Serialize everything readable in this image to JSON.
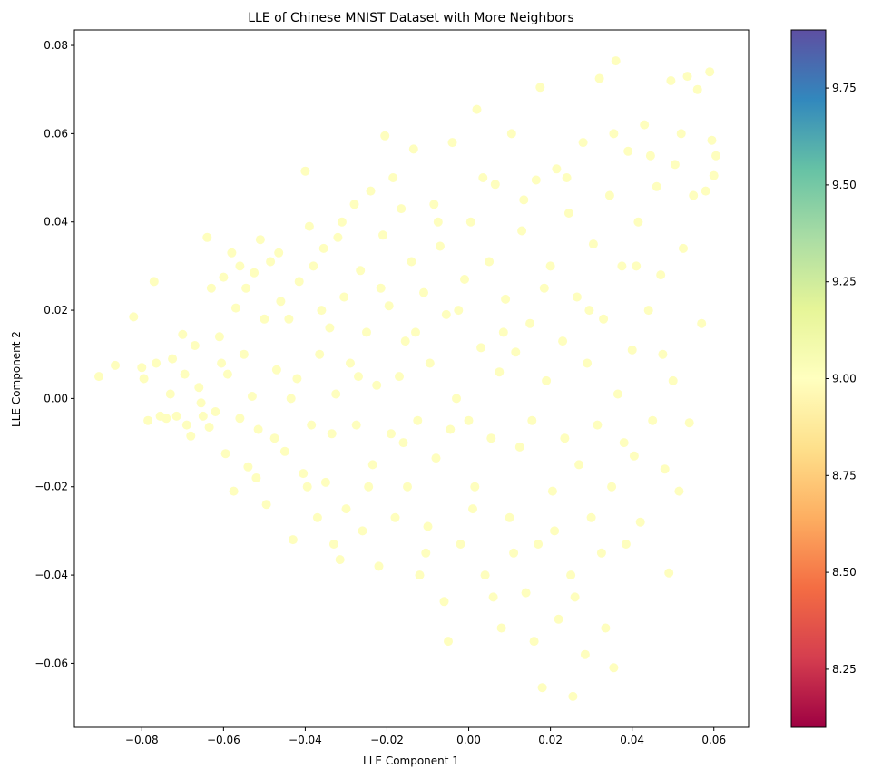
{
  "chart_data": {
    "type": "scatter",
    "title": "LLE of Chinese MNIST Dataset with More Neighbors",
    "xlabel": "LLE Component 1",
    "ylabel": "LLE Component 2",
    "xlim": [
      -0.0965,
      0.0685
    ],
    "ylim": [
      -0.0745,
      0.0835
    ],
    "xticks": [
      -0.08,
      -0.06,
      -0.04,
      -0.02,
      0.0,
      0.02,
      0.04,
      0.06
    ],
    "xtick_labels": [
      "−0.08",
      "−0.06",
      "−0.04",
      "−0.02",
      "0.00",
      "0.02",
      "0.04",
      "0.06"
    ],
    "yticks": [
      -0.06,
      -0.04,
      -0.02,
      0.0,
      0.02,
      0.04,
      0.06,
      0.08
    ],
    "ytick_labels": [
      "−0.06",
      "−0.04",
      "−0.02",
      "0.00",
      "0.02",
      "0.04",
      "0.06",
      "0.08"
    ],
    "point_color": "#fefebe",
    "grid": false,
    "colorbar": {
      "colormap": "Spectral",
      "range": [
        8.1,
        9.9
      ],
      "ticks": [
        8.25,
        8.5,
        8.75,
        9.0,
        9.25,
        9.5,
        9.75
      ],
      "tick_labels": [
        "8.25",
        "8.50",
        "8.75",
        "9.00",
        "9.25",
        "9.50",
        "9.75"
      ],
      "stops": [
        "#9e0142",
        "#d53e4f",
        "#f46d43",
        "#fdae61",
        "#fee08b",
        "#ffffbf",
        "#e6f598",
        "#abdda4",
        "#66c2a5",
        "#3288bd",
        "#5e4fa2"
      ]
    },
    "points": [
      [
        -0.0905,
        0.005
      ],
      [
        -0.0865,
        0.0075
      ],
      [
        -0.082,
        0.0185
      ],
      [
        -0.08,
        0.007
      ],
      [
        -0.0795,
        0.0045
      ],
      [
        -0.0785,
        -0.005
      ],
      [
        -0.077,
        0.0265
      ],
      [
        -0.0765,
        0.008
      ],
      [
        -0.0755,
        -0.004
      ],
      [
        -0.074,
        -0.0045
      ],
      [
        -0.073,
        0.001
      ],
      [
        -0.0715,
        -0.004
      ],
      [
        -0.07,
        0.0145
      ],
      [
        -0.0695,
        0.0055
      ],
      [
        -0.069,
        -0.006
      ],
      [
        -0.068,
        -0.0085
      ],
      [
        -0.067,
        0.012
      ],
      [
        -0.066,
        0.0025
      ],
      [
        -0.0655,
        -0.001
      ],
      [
        -0.064,
        0.0365
      ],
      [
        -0.0635,
        -0.0065
      ],
      [
        -0.063,
        0.025
      ],
      [
        -0.062,
        -0.003
      ],
      [
        -0.061,
        0.014
      ],
      [
        -0.06,
        0.0275
      ],
      [
        -0.0595,
        -0.0125
      ],
      [
        -0.059,
        0.0055
      ],
      [
        -0.058,
        0.033
      ],
      [
        -0.0575,
        -0.021
      ],
      [
        -0.057,
        0.0205
      ],
      [
        -0.056,
        -0.0045
      ],
      [
        -0.055,
        0.01
      ],
      [
        -0.0545,
        0.025
      ],
      [
        -0.054,
        -0.0155
      ],
      [
        -0.053,
        0.0005
      ],
      [
        -0.0525,
        0.0285
      ],
      [
        -0.0515,
        -0.007
      ],
      [
        -0.051,
        0.036
      ],
      [
        -0.05,
        0.018
      ],
      [
        -0.0495,
        -0.024
      ],
      [
        -0.0485,
        0.031
      ],
      [
        -0.0475,
        -0.009
      ],
      [
        -0.047,
        0.0065
      ],
      [
        -0.046,
        0.022
      ],
      [
        -0.045,
        -0.012
      ],
      [
        -0.044,
        0.018
      ],
      [
        -0.043,
        -0.032
      ],
      [
        -0.042,
        0.0045
      ],
      [
        -0.0415,
        0.0265
      ],
      [
        -0.0405,
        -0.017
      ],
      [
        -0.04,
        0.0515
      ],
      [
        -0.039,
        0.039
      ],
      [
        -0.0385,
        -0.006
      ],
      [
        -0.038,
        0.03
      ],
      [
        -0.037,
        -0.027
      ],
      [
        -0.0365,
        0.01
      ],
      [
        -0.0355,
        0.034
      ],
      [
        -0.035,
        -0.019
      ],
      [
        -0.034,
        0.016
      ],
      [
        -0.0335,
        -0.008
      ],
      [
        -0.0325,
        0.001
      ],
      [
        -0.032,
        0.0365
      ],
      [
        -0.0315,
        -0.0365
      ],
      [
        -0.0305,
        0.023
      ],
      [
        -0.03,
        -0.025
      ],
      [
        -0.029,
        0.008
      ],
      [
        -0.028,
        0.044
      ],
      [
        -0.0275,
        -0.006
      ],
      [
        -0.0265,
        0.029
      ],
      [
        -0.026,
        -0.03
      ],
      [
        -0.025,
        0.015
      ],
      [
        -0.024,
        0.047
      ],
      [
        -0.0235,
        -0.015
      ],
      [
        -0.0225,
        0.003
      ],
      [
        -0.022,
        -0.038
      ],
      [
        -0.021,
        0.037
      ],
      [
        -0.0205,
        0.0595
      ],
      [
        -0.0195,
        0.021
      ],
      [
        -0.019,
        -0.008
      ],
      [
        -0.018,
        -0.027
      ],
      [
        -0.017,
        0.005
      ],
      [
        -0.0165,
        0.043
      ],
      [
        -0.0155,
        0.013
      ],
      [
        -0.015,
        -0.02
      ],
      [
        -0.014,
        0.031
      ],
      [
        -0.0135,
        0.0565
      ],
      [
        -0.0125,
        -0.005
      ],
      [
        -0.012,
        -0.04
      ],
      [
        -0.011,
        0.024
      ],
      [
        -0.01,
        -0.029
      ],
      [
        -0.0095,
        0.008
      ],
      [
        -0.0085,
        0.044
      ],
      [
        -0.008,
        -0.0135
      ],
      [
        -0.007,
        0.0345
      ],
      [
        -0.006,
        -0.046
      ],
      [
        -0.0055,
        0.019
      ],
      [
        -0.0045,
        -0.007
      ],
      [
        -0.004,
        0.058
      ],
      [
        -0.003,
        0.0
      ],
      [
        -0.002,
        -0.033
      ],
      [
        -0.001,
        0.027
      ],
      [
        0.0,
        -0.005
      ],
      [
        0.0005,
        0.04
      ],
      [
        0.0015,
        -0.02
      ],
      [
        0.002,
        0.0655
      ],
      [
        0.003,
        0.0115
      ],
      [
        0.004,
        -0.04
      ],
      [
        0.005,
        0.031
      ],
      [
        0.0055,
        -0.009
      ],
      [
        0.0065,
        0.0485
      ],
      [
        0.0075,
        0.006
      ],
      [
        0.008,
        -0.052
      ],
      [
        0.009,
        0.0225
      ],
      [
        0.01,
        -0.027
      ],
      [
        0.0105,
        0.06
      ],
      [
        0.0115,
        0.0105
      ],
      [
        0.0125,
        -0.011
      ],
      [
        0.013,
        0.038
      ],
      [
        0.014,
        -0.044
      ],
      [
        0.015,
        0.017
      ],
      [
        0.0155,
        -0.005
      ],
      [
        0.0165,
        0.0495
      ],
      [
        0.017,
        -0.033
      ],
      [
        0.0175,
        0.0705
      ],
      [
        0.018,
        -0.0655
      ],
      [
        0.019,
        0.004
      ],
      [
        0.02,
        0.03
      ],
      [
        0.0205,
        -0.021
      ],
      [
        0.0215,
        0.052
      ],
      [
        0.022,
        -0.05
      ],
      [
        0.023,
        0.013
      ],
      [
        0.0235,
        -0.009
      ],
      [
        0.0245,
        0.042
      ],
      [
        0.025,
        -0.04
      ],
      [
        0.0255,
        -0.0675
      ],
      [
        0.0265,
        0.023
      ],
      [
        0.027,
        -0.015
      ],
      [
        0.028,
        0.058
      ],
      [
        0.0285,
        -0.058
      ],
      [
        0.029,
        0.008
      ],
      [
        0.03,
        -0.027
      ],
      [
        0.0305,
        0.035
      ],
      [
        0.0315,
        -0.006
      ],
      [
        0.032,
        0.0725
      ],
      [
        0.033,
        0.018
      ],
      [
        0.0335,
        -0.052
      ],
      [
        0.0345,
        0.046
      ],
      [
        0.035,
        -0.02
      ],
      [
        0.0355,
        -0.061
      ],
      [
        0.036,
        0.0765
      ],
      [
        0.0365,
        0.001
      ],
      [
        0.0375,
        0.03
      ],
      [
        0.0385,
        -0.033
      ],
      [
        0.039,
        0.056
      ],
      [
        0.04,
        0.011
      ],
      [
        0.0405,
        -0.013
      ],
      [
        0.0415,
        0.04
      ],
      [
        0.042,
        -0.028
      ],
      [
        0.043,
        0.062
      ],
      [
        0.044,
        0.02
      ],
      [
        0.045,
        -0.005
      ],
      [
        0.046,
        0.048
      ],
      [
        0.047,
        0.028
      ],
      [
        0.048,
        -0.016
      ],
      [
        0.049,
        -0.0395
      ],
      [
        0.0495,
        0.072
      ],
      [
        0.05,
        0.004
      ],
      [
        0.0505,
        0.053
      ],
      [
        0.0515,
        -0.021
      ],
      [
        0.0525,
        0.034
      ],
      [
        0.0535,
        0.073
      ],
      [
        0.054,
        -0.0055
      ],
      [
        0.055,
        0.046
      ],
      [
        0.056,
        0.07
      ],
      [
        0.057,
        0.017
      ],
      [
        0.058,
        0.047
      ],
      [
        0.059,
        0.074
      ],
      [
        0.0595,
        0.0585
      ],
      [
        0.0605,
        0.055
      ],
      [
        0.06,
        0.0505
      ],
      [
        -0.0725,
        0.009
      ],
      [
        -0.065,
        -0.004
      ],
      [
        -0.0605,
        0.008
      ],
      [
        -0.056,
        0.03
      ],
      [
        -0.052,
        -0.018
      ],
      [
        -0.0465,
        0.033
      ],
      [
        -0.0435,
        0.0
      ],
      [
        -0.0395,
        -0.02
      ],
      [
        -0.036,
        0.02
      ],
      [
        -0.033,
        -0.033
      ],
      [
        -0.031,
        0.04
      ],
      [
        -0.027,
        0.005
      ],
      [
        -0.0245,
        -0.02
      ],
      [
        -0.0215,
        0.025
      ],
      [
        -0.0185,
        0.05
      ],
      [
        -0.016,
        -0.01
      ],
      [
        -0.013,
        0.015
      ],
      [
        -0.0105,
        -0.035
      ],
      [
        -0.0075,
        0.04
      ],
      [
        -0.005,
        -0.055
      ],
      [
        -0.0025,
        0.02
      ],
      [
        0.001,
        -0.025
      ],
      [
        0.0035,
        0.05
      ],
      [
        0.006,
        -0.045
      ],
      [
        0.0085,
        0.015
      ],
      [
        0.011,
        -0.035
      ],
      [
        0.0135,
        0.045
      ],
      [
        0.016,
        -0.055
      ],
      [
        0.0185,
        0.025
      ],
      [
        0.021,
        -0.03
      ],
      [
        0.024,
        0.05
      ],
      [
        0.026,
        -0.045
      ],
      [
        0.0295,
        0.02
      ],
      [
        0.0325,
        -0.035
      ],
      [
        0.0355,
        0.06
      ],
      [
        0.038,
        -0.01
      ],
      [
        0.041,
        0.03
      ],
      [
        0.0445,
        0.055
      ],
      [
        0.0475,
        0.01
      ],
      [
        0.052,
        0.06
      ]
    ]
  }
}
